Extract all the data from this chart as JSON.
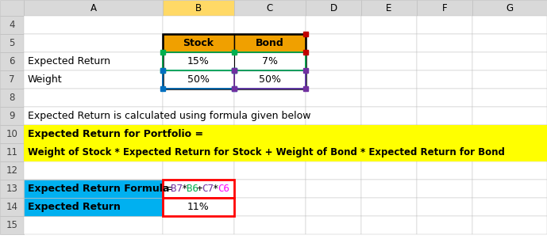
{
  "col_names": [
    "",
    "A",
    "B",
    "C",
    "D",
    "E",
    "F",
    "G"
  ],
  "col_header_b_bg": "#FFD966",
  "header_row_bg": "#D9D9D9",
  "stock_header": "Stock",
  "bond_header": "Bond",
  "table_header_bg": "#F0A000",
  "row6_label": "Expected Return",
  "row7_label": "Weight",
  "row6_b": "15%",
  "row6_c": "7%",
  "row7_b": "50%",
  "row7_c": "50%",
  "row9_text": "Expected Return is calculated using formula given below",
  "row10_text": "Expected Return for Portfolio =",
  "row11_text": "Weight of Stock * Expected Return for Stock + Weight of Bond * Expected Return for Bond",
  "yellow_bg": "#FFFF00",
  "row13_label": "Expected Return Formula",
  "row13_label_bg": "#00B0F0",
  "formula_parts": [
    "=",
    "B7",
    "*",
    "B6",
    "+",
    "C7",
    "*",
    "C6"
  ],
  "formula_part_colors": [
    "#000000",
    "#7030A0",
    "#000000",
    "#00B050",
    "#000000",
    "#7030A0",
    "#000000",
    "#FF00FF"
  ],
  "formula_cell_border": "#FF0000",
  "row14_label": "Expected Return",
  "row14_label_bg": "#00B0F0",
  "row14_value": "11%",
  "row14_value_border": "#FF0000",
  "dot_green": "#00B050",
  "dot_blue": "#0070C0",
  "dot_purple": "#7030A0",
  "dot_darkred": "#C00000",
  "grid_line_color": "#BFBFBF"
}
